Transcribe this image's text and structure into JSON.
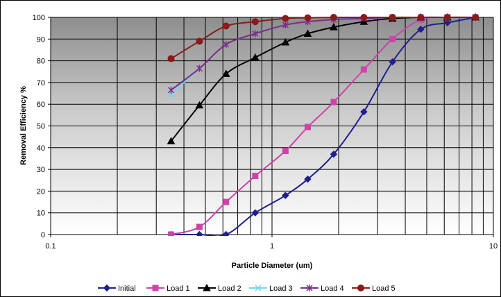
{
  "chart_data": {
    "type": "line",
    "title": "",
    "xlabel": "Particle Diameter (um)",
    "ylabel": "Removal Efficiency %",
    "x_scale": "log",
    "xlim": [
      0.1,
      10
    ],
    "ylim": [
      0,
      100
    ],
    "x_ticks": [
      "0.1",
      "1",
      "10"
    ],
    "y_ticks": [
      "0",
      "10",
      "20",
      "30",
      "40",
      "50",
      "60",
      "70",
      "80",
      "90",
      "100"
    ],
    "grid": true,
    "legend_position": "bottom",
    "series": [
      {
        "name": "Initial",
        "color": "#1f1f8f",
        "marker": "diamond",
        "x": [
          0.35,
          0.47,
          0.62,
          0.84,
          1.15,
          1.45,
          1.9,
          2.6,
          3.5,
          4.7,
          6.2,
          8.3
        ],
        "y": [
          0,
          0,
          0,
          10,
          18,
          25.5,
          37,
          56.5,
          79.5,
          94.5,
          97.5,
          100
        ]
      },
      {
        "name": "Load 1",
        "color": "#cc44aa",
        "marker": "square",
        "x": [
          0.35,
          0.47,
          0.62,
          0.84,
          1.15,
          1.45,
          1.9,
          2.6,
          3.5,
          4.7,
          6.2,
          8.3
        ],
        "y": [
          0,
          3.5,
          15,
          27,
          38.5,
          49.5,
          61,
          76,
          90,
          99,
          100,
          100
        ]
      },
      {
        "name": "Load 2",
        "color": "#000000",
        "marker": "triangle",
        "x": [
          0.35,
          0.47,
          0.62,
          0.84,
          1.15,
          1.45,
          1.9,
          2.6,
          3.5,
          4.7,
          6.2,
          8.3
        ],
        "y": [
          43,
          59.5,
          74,
          81.5,
          88.5,
          92.5,
          95.5,
          98,
          99.5,
          100,
          100,
          100
        ]
      },
      {
        "name": "Load 3",
        "color": "#6fd8ea",
        "marker": "x",
        "x": [
          0.35,
          0.47
        ],
        "y": [
          64.5,
          76.5
        ]
      },
      {
        "name": "Load 4",
        "color": "#7b2d8f",
        "marker": "star",
        "x": [
          0.35,
          0.47,
          0.62,
          0.84,
          1.15,
          1.45,
          1.9,
          2.6,
          3.5,
          4.7,
          6.2,
          8.3
        ],
        "y": [
          66.5,
          76.5,
          87.5,
          92.5,
          96.5,
          98,
          99,
          99.5,
          100,
          100,
          100,
          100
        ]
      },
      {
        "name": "Load 5",
        "color": "#8b1a1a",
        "marker": "circle",
        "x": [
          0.35,
          0.47,
          0.62,
          0.84,
          1.15,
          1.45,
          1.9,
          2.6,
          3.5,
          4.7,
          6.2,
          8.3
        ],
        "y": [
          81,
          89,
          96,
          98,
          99.5,
          99.8,
          100,
          100,
          100,
          100,
          100,
          100
        ]
      }
    ]
  }
}
